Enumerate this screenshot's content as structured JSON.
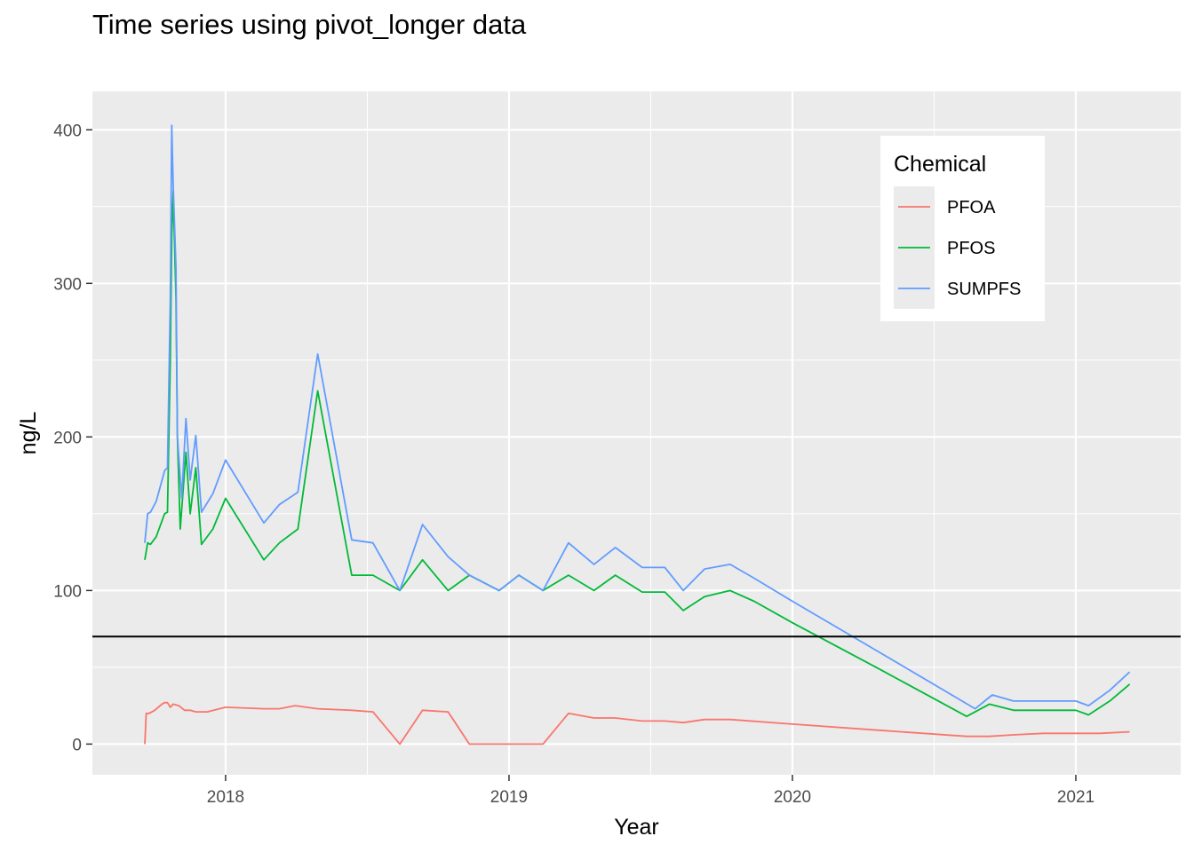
{
  "chart_data": {
    "type": "line",
    "title": "Time series using pivot_longer data",
    "xlabel": "Year",
    "ylabel": "ng/L",
    "xlim": [
      2017.53,
      2021.37
    ],
    "ylim": [
      -20,
      425
    ],
    "x_ticks": [
      2018,
      2019,
      2020,
      2021
    ],
    "x_tick_labels": [
      "2018",
      "2019",
      "2020",
      "2021"
    ],
    "y_ticks": [
      0,
      100,
      200,
      300,
      400
    ],
    "y_tick_labels": [
      "0",
      "100",
      "200",
      "300",
      "400"
    ],
    "grid": true,
    "reference_line_y": 70,
    "legend": {
      "title": "Chemical",
      "position": "top-right"
    },
    "series": [
      {
        "name": "PFOA",
        "color": "#F8766D",
        "x": [
          2017.715,
          2017.72,
          2017.73,
          2017.75,
          2017.775,
          2017.785,
          2017.795,
          2017.805,
          2017.815,
          2017.835,
          2017.855,
          2017.875,
          2017.895,
          2017.915,
          2017.935,
          2018.0,
          2018.135,
          2018.19,
          2018.245,
          2018.325,
          2018.445,
          2018.52,
          2018.615,
          2018.695,
          2018.785,
          2018.86,
          2019.12,
          2019.21,
          2019.3,
          2019.375,
          2019.47,
          2019.55,
          2019.615,
          2019.69,
          2019.78,
          2020.0,
          2020.305,
          2020.615,
          2020.695,
          2020.78,
          2020.885,
          2021.085,
          2021.19
        ],
        "y": [
          0,
          20,
          20,
          22,
          26,
          27,
          27,
          24,
          26,
          25,
          22,
          22,
          21,
          21,
          21,
          24,
          23,
          23,
          25,
          23,
          22,
          21,
          0,
          22,
          21,
          0,
          0,
          20,
          17,
          17,
          15,
          15,
          14,
          16,
          16,
          13,
          9,
          5,
          5,
          6,
          7,
          7,
          8
        ]
      },
      {
        "name": "PFOS",
        "color": "#00BA38",
        "x": [
          2017.715,
          2017.725,
          2017.735,
          2017.755,
          2017.785,
          2017.795,
          2017.805,
          2017.81,
          2017.815,
          2017.825,
          2017.83,
          2017.84,
          2017.86,
          2017.875,
          2017.895,
          2017.915,
          2017.955,
          2018.0,
          2018.135,
          2018.19,
          2018.255,
          2018.325,
          2018.445,
          2018.52,
          2018.615,
          2018.695,
          2018.785,
          2018.86,
          2018.965,
          2019.035,
          2019.12,
          2019.21,
          2019.3,
          2019.375,
          2019.47,
          2019.55,
          2019.615,
          2019.69,
          2019.78,
          2019.865,
          2020.0,
          2020.305,
          2020.615,
          2020.695,
          2020.78,
          2020.885,
          2021.0,
          2021.045,
          2021.12,
          2021.19
        ],
        "y": [
          120,
          131,
          130,
          135,
          150,
          151,
          250,
          330,
          360,
          290,
          200,
          140,
          190,
          150,
          180,
          130,
          140,
          160,
          120,
          131,
          140,
          230,
          110,
          110,
          100,
          120,
          100,
          110,
          100,
          110,
          100,
          110,
          100,
          110,
          99,
          99,
          87,
          96,
          100,
          93,
          79,
          49,
          18,
          26,
          22,
          22,
          22,
          19,
          28,
          39
        ]
      },
      {
        "name": "SUMPFS",
        "color": "#619CFF",
        "x": [
          2017.715,
          2017.725,
          2017.735,
          2017.755,
          2017.785,
          2017.795,
          2017.805,
          2017.81,
          2017.815,
          2017.825,
          2017.83,
          2017.845,
          2017.86,
          2017.875,
          2017.895,
          2017.915,
          2017.955,
          2018.0,
          2018.135,
          2018.19,
          2018.255,
          2018.325,
          2018.445,
          2018.52,
          2018.615,
          2018.695,
          2018.785,
          2018.86,
          2018.965,
          2019.035,
          2019.12,
          2019.21,
          2019.3,
          2019.375,
          2019.47,
          2019.55,
          2019.615,
          2019.69,
          2019.78,
          2019.865,
          2020.0,
          2020.305,
          2020.645,
          2020.705,
          2020.78,
          2020.885,
          2021.0,
          2021.045,
          2021.12,
          2021.19
        ],
        "y": [
          131,
          150,
          151,
          158,
          178,
          180,
          290,
          403,
          365,
          310,
          200,
          160,
          212,
          172,
          201,
          151,
          163,
          185,
          144,
          156,
          164,
          254,
          133,
          131,
          100,
          143,
          122,
          110,
          100,
          110,
          100,
          131,
          117,
          128,
          115,
          115,
          100,
          114,
          117,
          108,
          93,
          60,
          23,
          32,
          28,
          28,
          28,
          25,
          35,
          47
        ]
      }
    ]
  }
}
